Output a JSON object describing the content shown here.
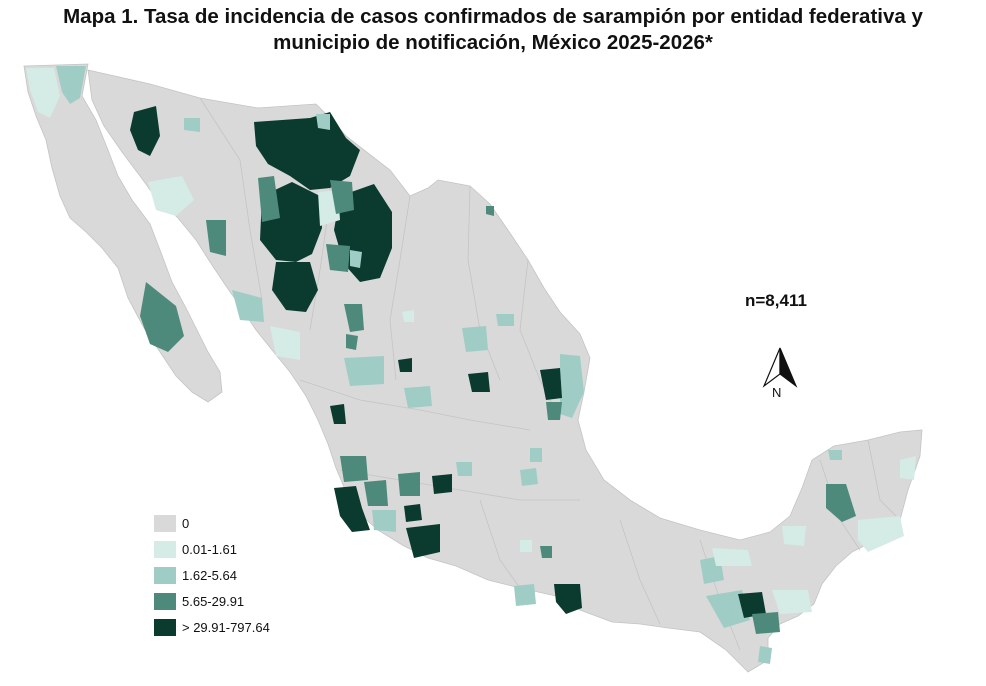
{
  "title": {
    "line1": "Mapa 1. Tasa de incidencia de casos confirmados de sarampión por entidad federativa y",
    "line2": "municipio de  notificación, México 2025-2026*"
  },
  "count_label": "n=8,411",
  "compass": {
    "icon": "north-arrow-icon",
    "label": "N"
  },
  "legend": {
    "items": [
      {
        "label": "0",
        "color": "#d9d9d9"
      },
      {
        "label": "0.01-1.61",
        "color": "#d4ebe6"
      },
      {
        "label": "1.62-5.64",
        "color": "#9fcdc6"
      },
      {
        "label": "5.65-29.91",
        "color": "#4d8a7b"
      },
      {
        "label": "> 29.91-797.64",
        "color": "#0b3a2e"
      }
    ]
  },
  "colors": {
    "base_land": "#d9d9d9",
    "borders": "#c4c4c4"
  }
}
